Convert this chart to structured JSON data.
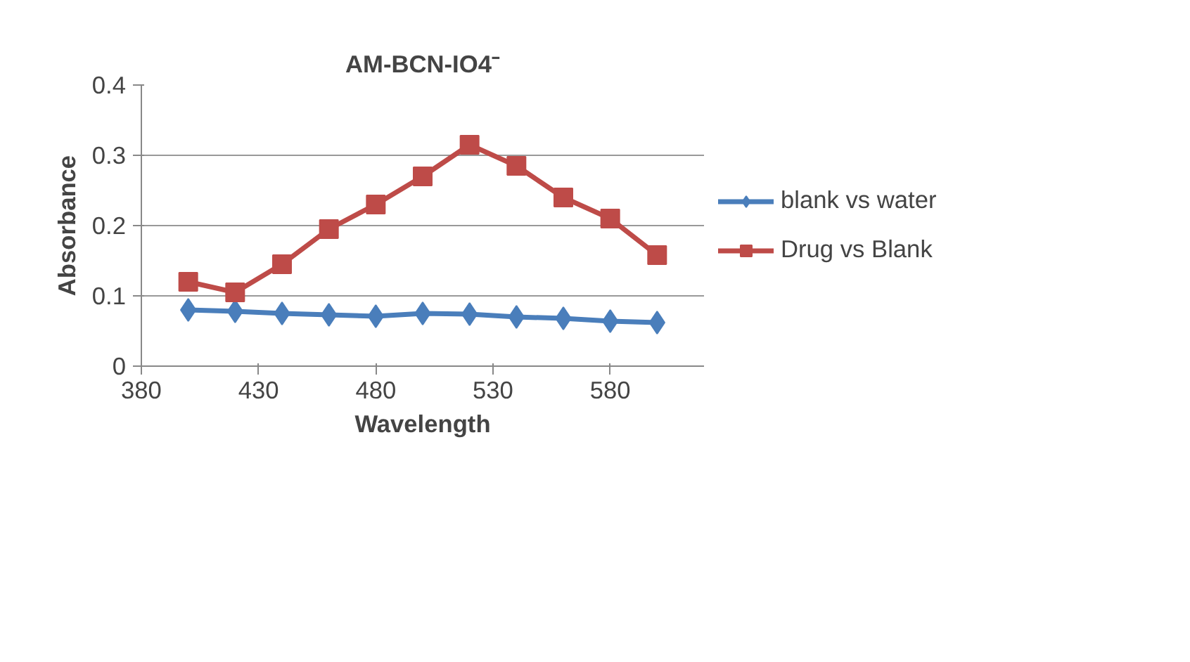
{
  "chart_data": {
    "type": "line",
    "title": "AM-BCN-IO4⁻",
    "xlabel": "Wavelength",
    "ylabel": "Absorbance",
    "x": [
      400,
      420,
      440,
      460,
      480,
      500,
      520,
      540,
      560,
      580,
      600
    ],
    "series": [
      {
        "name": "blank vs water",
        "color": "#4a7ebb",
        "marker": "diamond",
        "values": [
          0.08,
          0.078,
          0.075,
          0.073,
          0.071,
          0.075,
          0.074,
          0.07,
          0.068,
          0.064,
          0.062
        ]
      },
      {
        "name": "Drug vs Blank",
        "color": "#be4b48",
        "marker": "square",
        "values": [
          0.12,
          0.105,
          0.145,
          0.195,
          0.23,
          0.27,
          0.315,
          0.285,
          0.24,
          0.21,
          0.158
        ]
      }
    ],
    "xlim": [
      380,
      620
    ],
    "xticks": [
      380,
      430,
      480,
      530,
      580
    ],
    "ylim": [
      0,
      0.4
    ],
    "yticks": [
      0,
      0.1,
      0.2,
      0.3,
      0.4
    ],
    "grid": "y",
    "legend": "right"
  }
}
